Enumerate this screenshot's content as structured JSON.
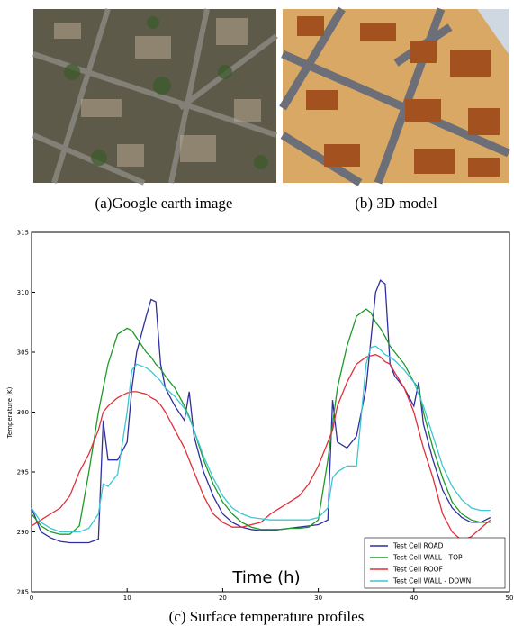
{
  "panels": [
    {
      "caption": "(a)Google earth image"
    },
    {
      "caption": "(b) 3D model"
    }
  ],
  "chart_data": {
    "type": "line",
    "caption": "(c) Surface temperature profiles",
    "x_label": "Time (h)",
    "y_label": "Temperature (K)",
    "x": [
      0,
      1,
      2,
      3,
      4,
      5,
      6,
      7,
      7.5,
      8,
      9,
      10,
      10.5,
      11,
      12,
      12.5,
      13,
      13.5,
      14,
      15,
      16,
      16.5,
      17,
      18,
      19,
      20,
      21,
      22,
      23,
      24,
      25,
      26,
      27,
      28,
      29,
      30,
      31,
      31.5,
      32,
      33,
      34,
      35,
      35.5,
      36,
      36.5,
      37,
      37.5,
      38,
      39,
      40,
      40.5,
      41,
      42,
      43,
      44,
      45,
      46,
      47,
      48
    ],
    "xlim": [
      0,
      50
    ],
    "xticks": [
      0,
      10,
      20,
      30,
      40,
      50
    ],
    "ylim": [
      285,
      315
    ],
    "yticks": [
      285,
      290,
      295,
      300,
      305,
      310,
      315
    ],
    "legend": "lower right",
    "series": [
      {
        "name": "Test Cell ROAD",
        "color": "#2f2f9e",
        "values": [
          292,
          290,
          289.5,
          289.2,
          289.1,
          289.1,
          289.1,
          289.4,
          299.3,
          296,
          296,
          297.5,
          302,
          305,
          308,
          309.4,
          309.2,
          304,
          302,
          300.5,
          299.3,
          301.7,
          298,
          295,
          293,
          291.5,
          290.8,
          290.4,
          290.2,
          290.1,
          290.1,
          290.2,
          290.3,
          290.4,
          290.5,
          290.6,
          291,
          301,
          297.5,
          297,
          298,
          302,
          306,
          310,
          311,
          310.7,
          304,
          303,
          302,
          300.5,
          302.5,
          299,
          296,
          293.5,
          292,
          291.2,
          290.8,
          290.8,
          291.2
        ]
      },
      {
        "name": "Test Cell WALL - TOP",
        "color": "#1f9a2a",
        "values": [
          291.5,
          290.5,
          290,
          289.8,
          289.8,
          290.5,
          295,
          300,
          302,
          304,
          306.5,
          307,
          306.8,
          306.2,
          305,
          304.6,
          304,
          303.6,
          303,
          302,
          300.5,
          299.6,
          298.5,
          296,
          294,
          292.5,
          291.5,
          290.8,
          290.4,
          290.2,
          290.2,
          290.2,
          290.3,
          290.3,
          290.4,
          291,
          296,
          299,
          302,
          305.5,
          308,
          308.6,
          308.3,
          307.5,
          307,
          306.3,
          305.5,
          305,
          304,
          302.5,
          302,
          300,
          297,
          294.5,
          292.5,
          291.5,
          291,
          290.8,
          290.8
        ]
      },
      {
        "name": "Test Cell ROOF",
        "color": "#e0303a",
        "values": [
          290.5,
          291,
          291.5,
          292,
          293,
          295,
          296.5,
          298.5,
          300,
          300.5,
          301.2,
          301.6,
          301.7,
          301.7,
          301.5,
          301.2,
          301,
          300.6,
          300,
          298.5,
          297,
          296,
          295,
          293,
          291.5,
          290.8,
          290.4,
          290.4,
          290.6,
          290.8,
          291.5,
          292,
          292.5,
          293,
          294,
          295.5,
          297.5,
          298.5,
          300.5,
          302.5,
          304,
          304.6,
          304.7,
          304.8,
          304.6,
          304.2,
          304,
          303.3,
          302,
          300,
          298.5,
          297,
          294.5,
          291.5,
          290,
          289.3,
          289.6,
          290.3,
          291
        ]
      },
      {
        "name": "Test Cell WALL - DOWN",
        "color": "#3fc6d0",
        "values": [
          292,
          290.8,
          290.3,
          290,
          290,
          290,
          290.3,
          291.5,
          294,
          293.8,
          294.8,
          300,
          303.5,
          304,
          303.7,
          303.4,
          303,
          302.6,
          302,
          301.3,
          300.3,
          299.5,
          298.5,
          296.3,
          294.5,
          293,
          292,
          291.5,
          291.2,
          291.1,
          291,
          291,
          291,
          291,
          291,
          291.2,
          292,
          294.5,
          295,
          295.5,
          295.5,
          304,
          305.4,
          305.5,
          305.2,
          304.8,
          304.6,
          304.3,
          303.5,
          302.5,
          301.5,
          300.5,
          298,
          295.5,
          293.8,
          292.7,
          292,
          291.8,
          291.8
        ]
      }
    ]
  }
}
